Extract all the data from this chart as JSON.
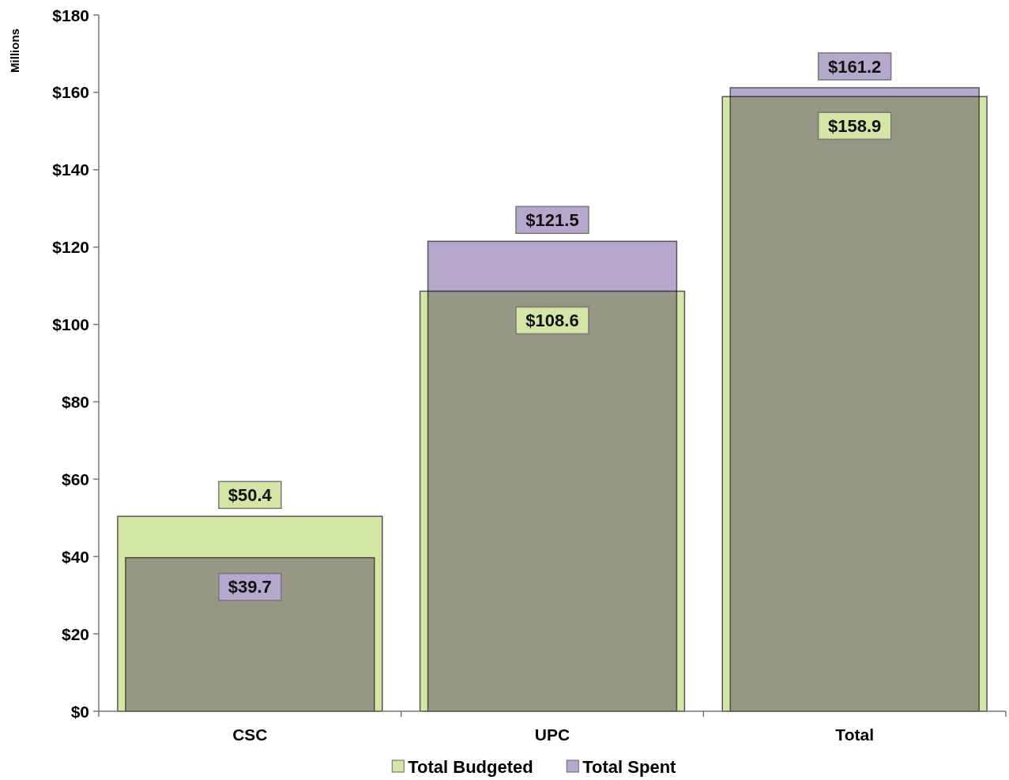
{
  "chart_data": {
    "type": "bar",
    "ylabel": "Millions",
    "categories": [
      "CSC",
      "UPC",
      "Total"
    ],
    "series": [
      {
        "name": "Total Budgeted",
        "color": "#d3e6a6",
        "values": [
          50.4,
          108.6,
          158.9
        ],
        "value_labels": [
          "$50.4",
          "$108.6",
          "$158.9"
        ]
      },
      {
        "name": "Total Spent",
        "color": "#b6a8cc",
        "values": [
          39.7,
          121.5,
          161.2
        ],
        "value_labels": [
          "$39.7",
          "$121.5",
          "$161.2"
        ]
      }
    ],
    "ylim": [
      0,
      180
    ],
    "yticks": [
      {
        "value": 0,
        "label": "$0"
      },
      {
        "value": 20,
        "label": "$20"
      },
      {
        "value": 40,
        "label": "$40"
      },
      {
        "value": 60,
        "label": "$60"
      },
      {
        "value": 80,
        "label": "$80"
      },
      {
        "value": 100,
        "label": "$100"
      },
      {
        "value": 120,
        "label": "$120"
      },
      {
        "value": 140,
        "label": "$140"
      },
      {
        "value": 160,
        "label": "$160"
      },
      {
        "value": 180,
        "label": "$180"
      }
    ],
    "grid": false,
    "legend": "bottom"
  }
}
